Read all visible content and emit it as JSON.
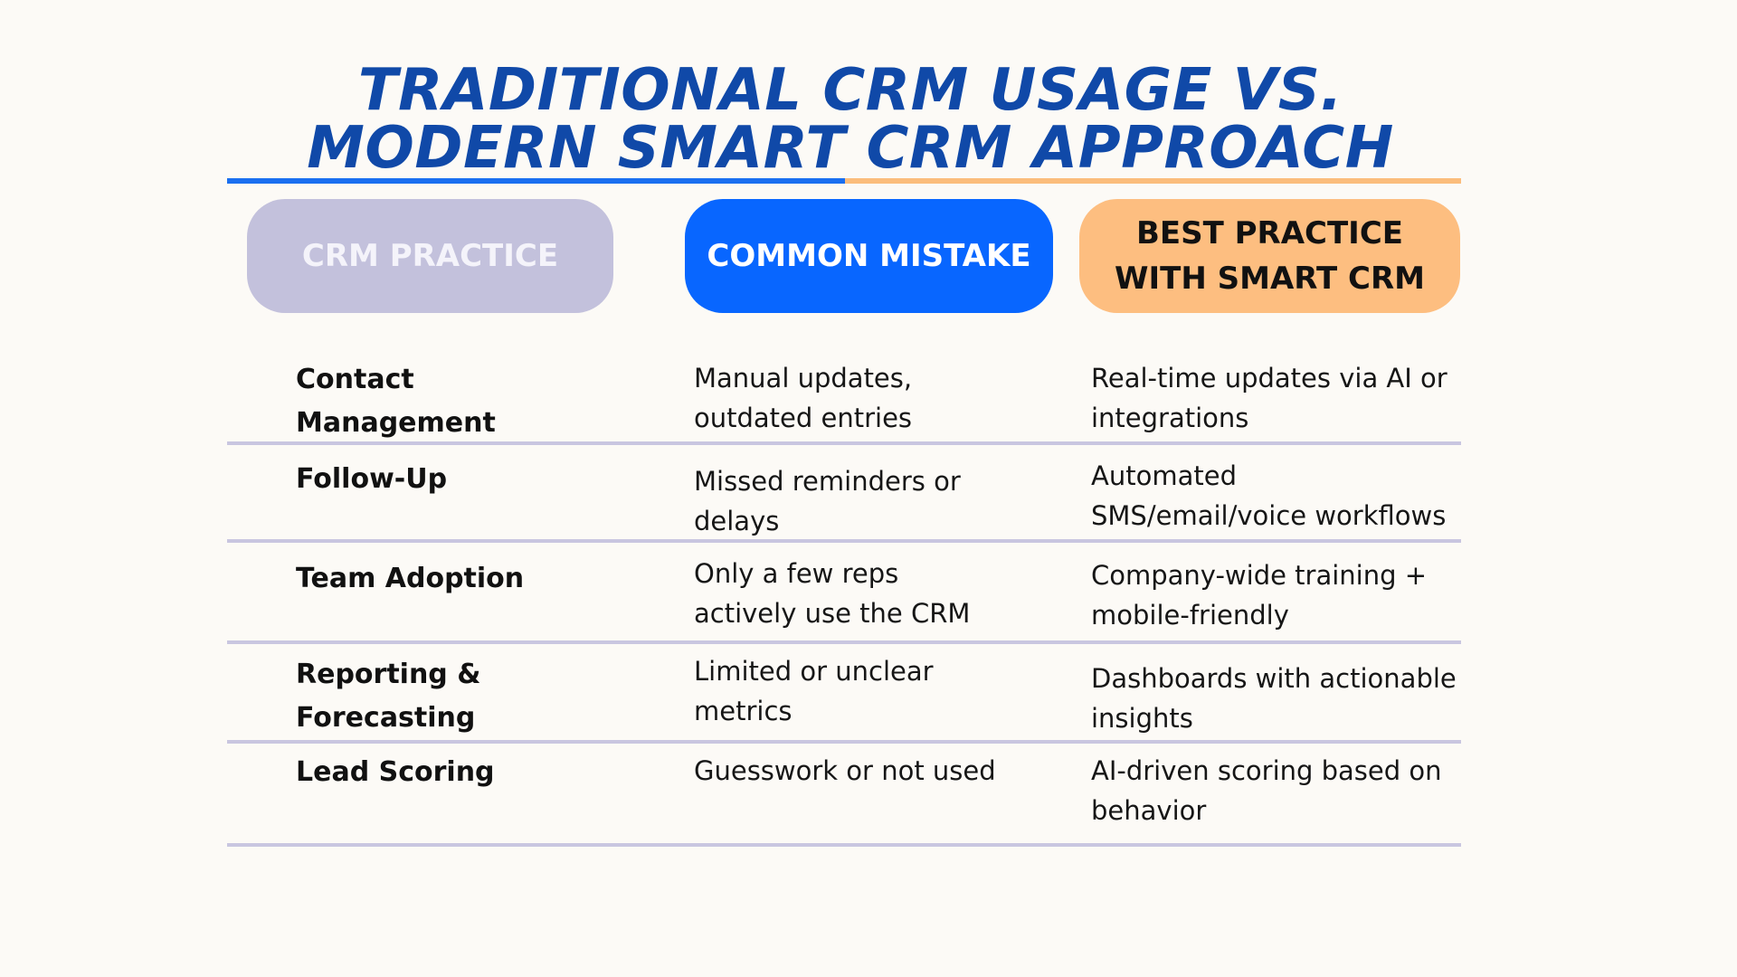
{
  "title": "TRADITIONAL CRM USAGE VS. MODERN SMART CRM APPROACH",
  "colors": {
    "title": "#1049a8",
    "accent_blue": "#0866ff",
    "accent_orange": "#fdbe80",
    "accent_lavender": "#c3c1dc",
    "row_divider": "#c9c6e0",
    "background": "#fcfaf6"
  },
  "headers": {
    "practice": "CRM PRACTICE",
    "mistake": "COMMON MISTAKE",
    "best": "BEST PRACTICE WITH SMART CRM"
  },
  "rows": [
    {
      "practice": "Contact Management",
      "mistake": "Manual updates, outdated entries",
      "best": "Real-time updates via AI or integrations"
    },
    {
      "practice": "Follow-Up",
      "mistake": "Missed reminders or delays",
      "best": "Automated SMS/email/voice workflows"
    },
    {
      "practice": "Team Adoption",
      "mistake": "Only a few reps actively use the CRM",
      "best": "Company-wide training + mobile-friendly"
    },
    {
      "practice": "Reporting & Forecasting",
      "mistake": "Limited or unclear metrics",
      "best": "Dashboards with actionable insights"
    },
    {
      "practice": "Lead Scoring",
      "mistake": "Guesswork or not used",
      "best": "AI-driven scoring based on behavior"
    }
  ]
}
